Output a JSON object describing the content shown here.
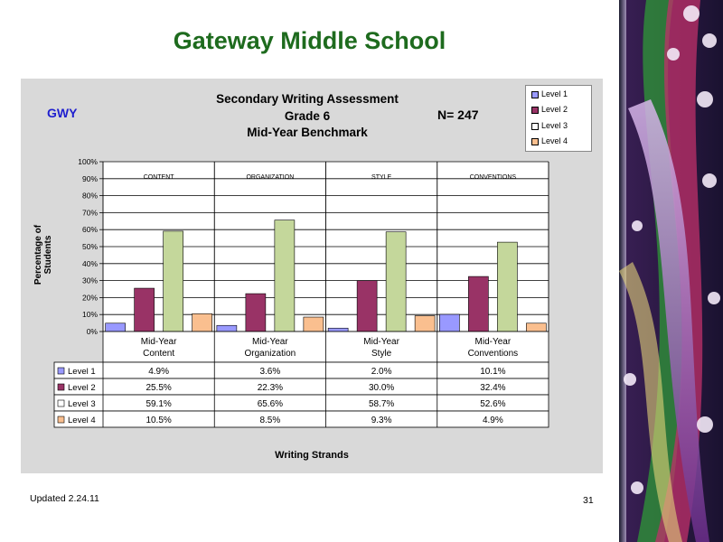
{
  "slide": {
    "title": "Gateway Middle School",
    "footer_left": "Updated  2.24.11",
    "page_number": "31"
  },
  "chart_data": {
    "type": "bar",
    "school_code": "GWY",
    "title": [
      "Secondary Writing Assessment",
      "Grade 6",
      "Mid-Year Benchmark"
    ],
    "n_label": "N=  247",
    "ylabel": "Percentage of Students",
    "xlabel": "Writing Strands",
    "ylim": [
      0,
      100
    ],
    "yticks": [
      "0%",
      "10%",
      "20%",
      "30%",
      "40%",
      "50%",
      "60%",
      "70%",
      "80%",
      "90%",
      "100%"
    ],
    "group_headers": [
      "CONTENT",
      "ORGANIZATION",
      "STYLE",
      "CONVENTIONS"
    ],
    "categories": [
      [
        "Mid-Year",
        "Content"
      ],
      [
        "Mid-Year",
        "Organization"
      ],
      [
        "Mid-Year",
        "Style"
      ],
      [
        "Mid-Year",
        "Conventions"
      ]
    ],
    "series": [
      {
        "name": "Level 1",
        "color": "#9999ff",
        "values": [
          4.9,
          3.6,
          2.0,
          10.1
        ],
        "labels": [
          "4.9%",
          "3.6%",
          "2.0%",
          "10.1%"
        ]
      },
      {
        "name": "Level 2",
        "color": "#993366",
        "values": [
          25.5,
          22.3,
          30.0,
          32.4
        ],
        "labels": [
          "25.5%",
          "22.3%",
          "30.0%",
          "32.4%"
        ]
      },
      {
        "name": "Level 3",
        "color": "#c4d79b",
        "values": [
          59.1,
          65.6,
          58.7,
          52.6
        ],
        "labels": [
          "59.1%",
          "65.6%",
          "58.7%",
          "52.6%"
        ]
      },
      {
        "name": "Level 4",
        "color": "#fabf8f",
        "values": [
          10.5,
          8.5,
          9.3,
          4.9
        ],
        "labels": [
          "10.5%",
          "8.5%",
          "9.3%",
          "4.9%"
        ]
      }
    ],
    "legend_position": "top-right",
    "grid": true
  }
}
